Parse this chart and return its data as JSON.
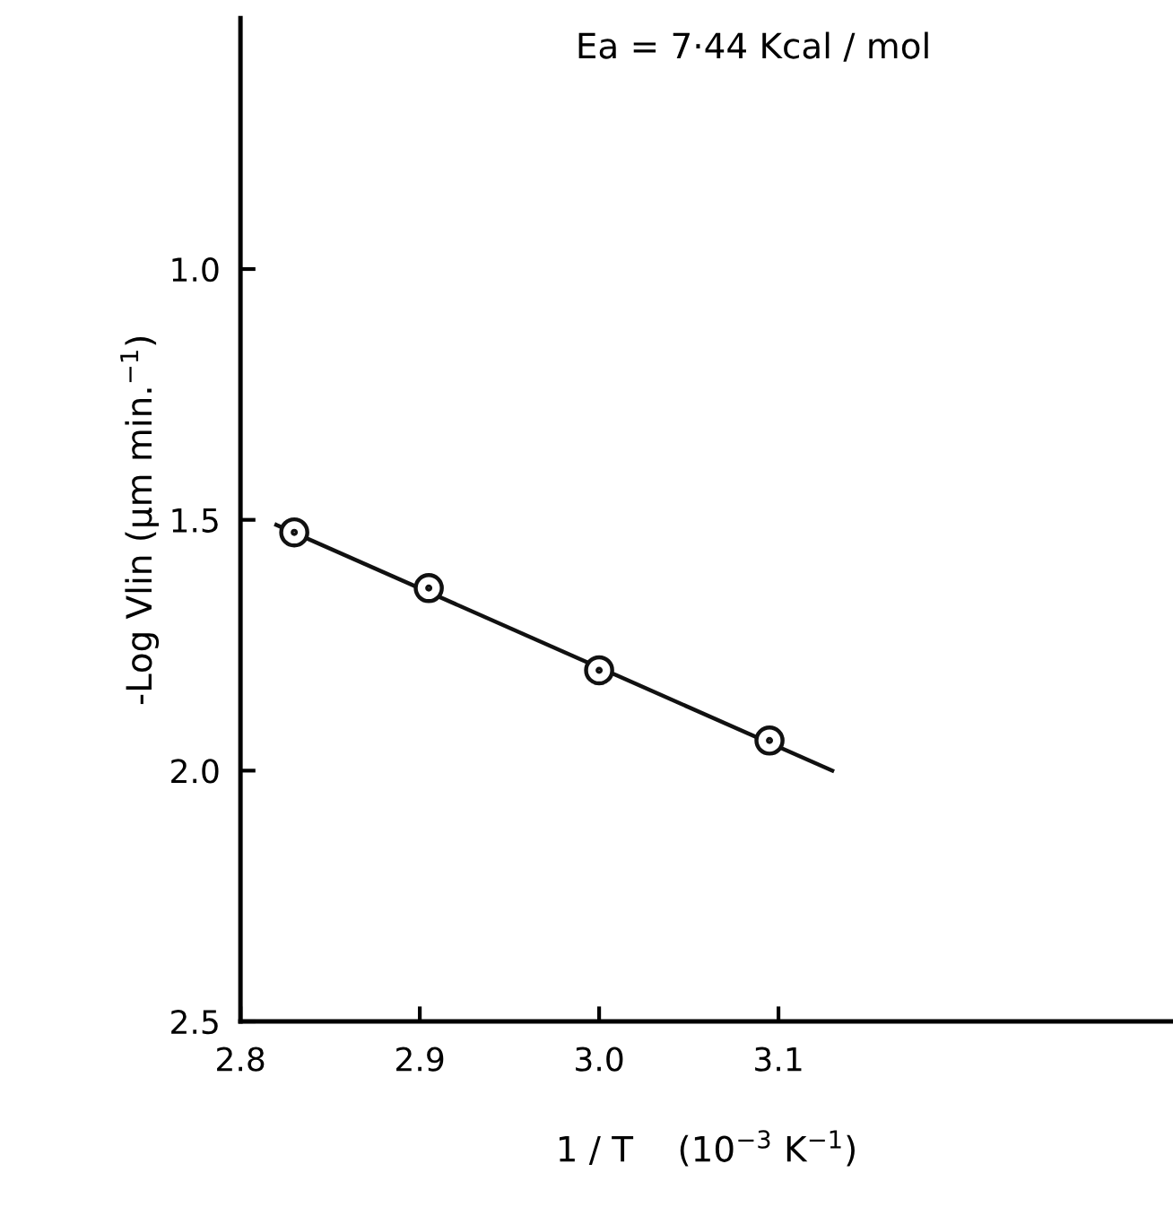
{
  "chart_data": {
    "type": "scatter",
    "xlabel": "1 / T    (10$^{−3}$ K$^{−1}$)",
    "ylabel": "-Log Vlin (μm min.$^{−1}$)",
    "annotations": [
      "Ea = 7·44 Kcal / mol"
    ],
    "xlim": [
      2.8,
      3.32
    ],
    "ylim": [
      2.5,
      0.5
    ],
    "xticks": [
      {
        "value": 2.8,
        "label": "2.8"
      },
      {
        "value": 2.9,
        "label": "2.9"
      },
      {
        "value": 3.0,
        "label": "3.0"
      },
      {
        "value": 3.1,
        "label": "3.1"
      }
    ],
    "yticks": [
      {
        "value": 1.0,
        "label": "1.0"
      },
      {
        "value": 1.5,
        "label": "1.5"
      },
      {
        "value": 2.0,
        "label": "2.0"
      },
      {
        "value": 2.5,
        "label": "2.5"
      }
    ],
    "grid": false,
    "legend": false,
    "series": [
      {
        "color": "#111111",
        "marker": "circle",
        "x": [
          2.83,
          2.905,
          3.0,
          3.095
        ],
        "values": [
          1.525,
          1.636,
          1.8,
          1.94
        ]
      },
      {
        "type": "line",
        "color": "#111111",
        "line_style": "solid",
        "x": [
          2.82,
          3.13
        ],
        "values": [
          1.51,
          2.0
        ]
      }
    ]
  }
}
